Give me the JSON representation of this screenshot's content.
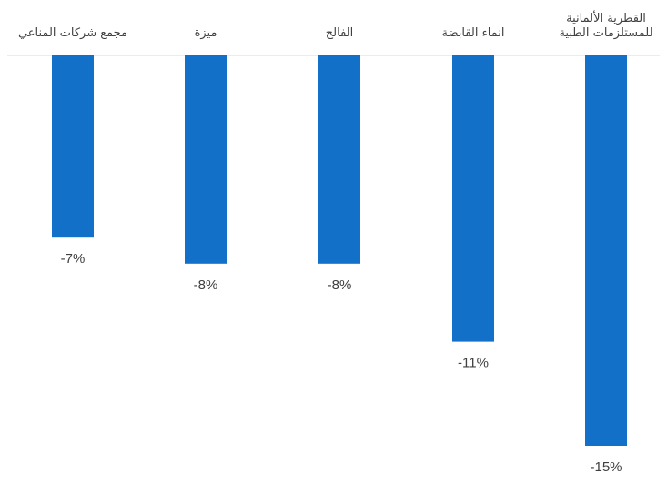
{
  "chart_data": {
    "type": "bar",
    "orientation": "vertical",
    "categories": [
      [
        "مجمع شركات المناعي"
      ],
      [
        "ميزة"
      ],
      [
        "الفالح"
      ],
      [
        "انماء القابضة"
      ],
      [
        "القطرية الألمانية",
        "للمستلزمات الطبية"
      ]
    ],
    "values": [
      -7,
      -8,
      -8,
      -11,
      -15
    ],
    "value_labels": [
      "-7%",
      "-8%",
      "-8%",
      "-11%",
      "-15%"
    ],
    "title": "",
    "xlabel": "",
    "ylabel": "",
    "ylim": [
      -15,
      0
    ],
    "grid": false,
    "legend": "none",
    "colors": {
      "bar": "#1270C9",
      "axis": "#D9D9D9",
      "text": "#404040"
    }
  }
}
